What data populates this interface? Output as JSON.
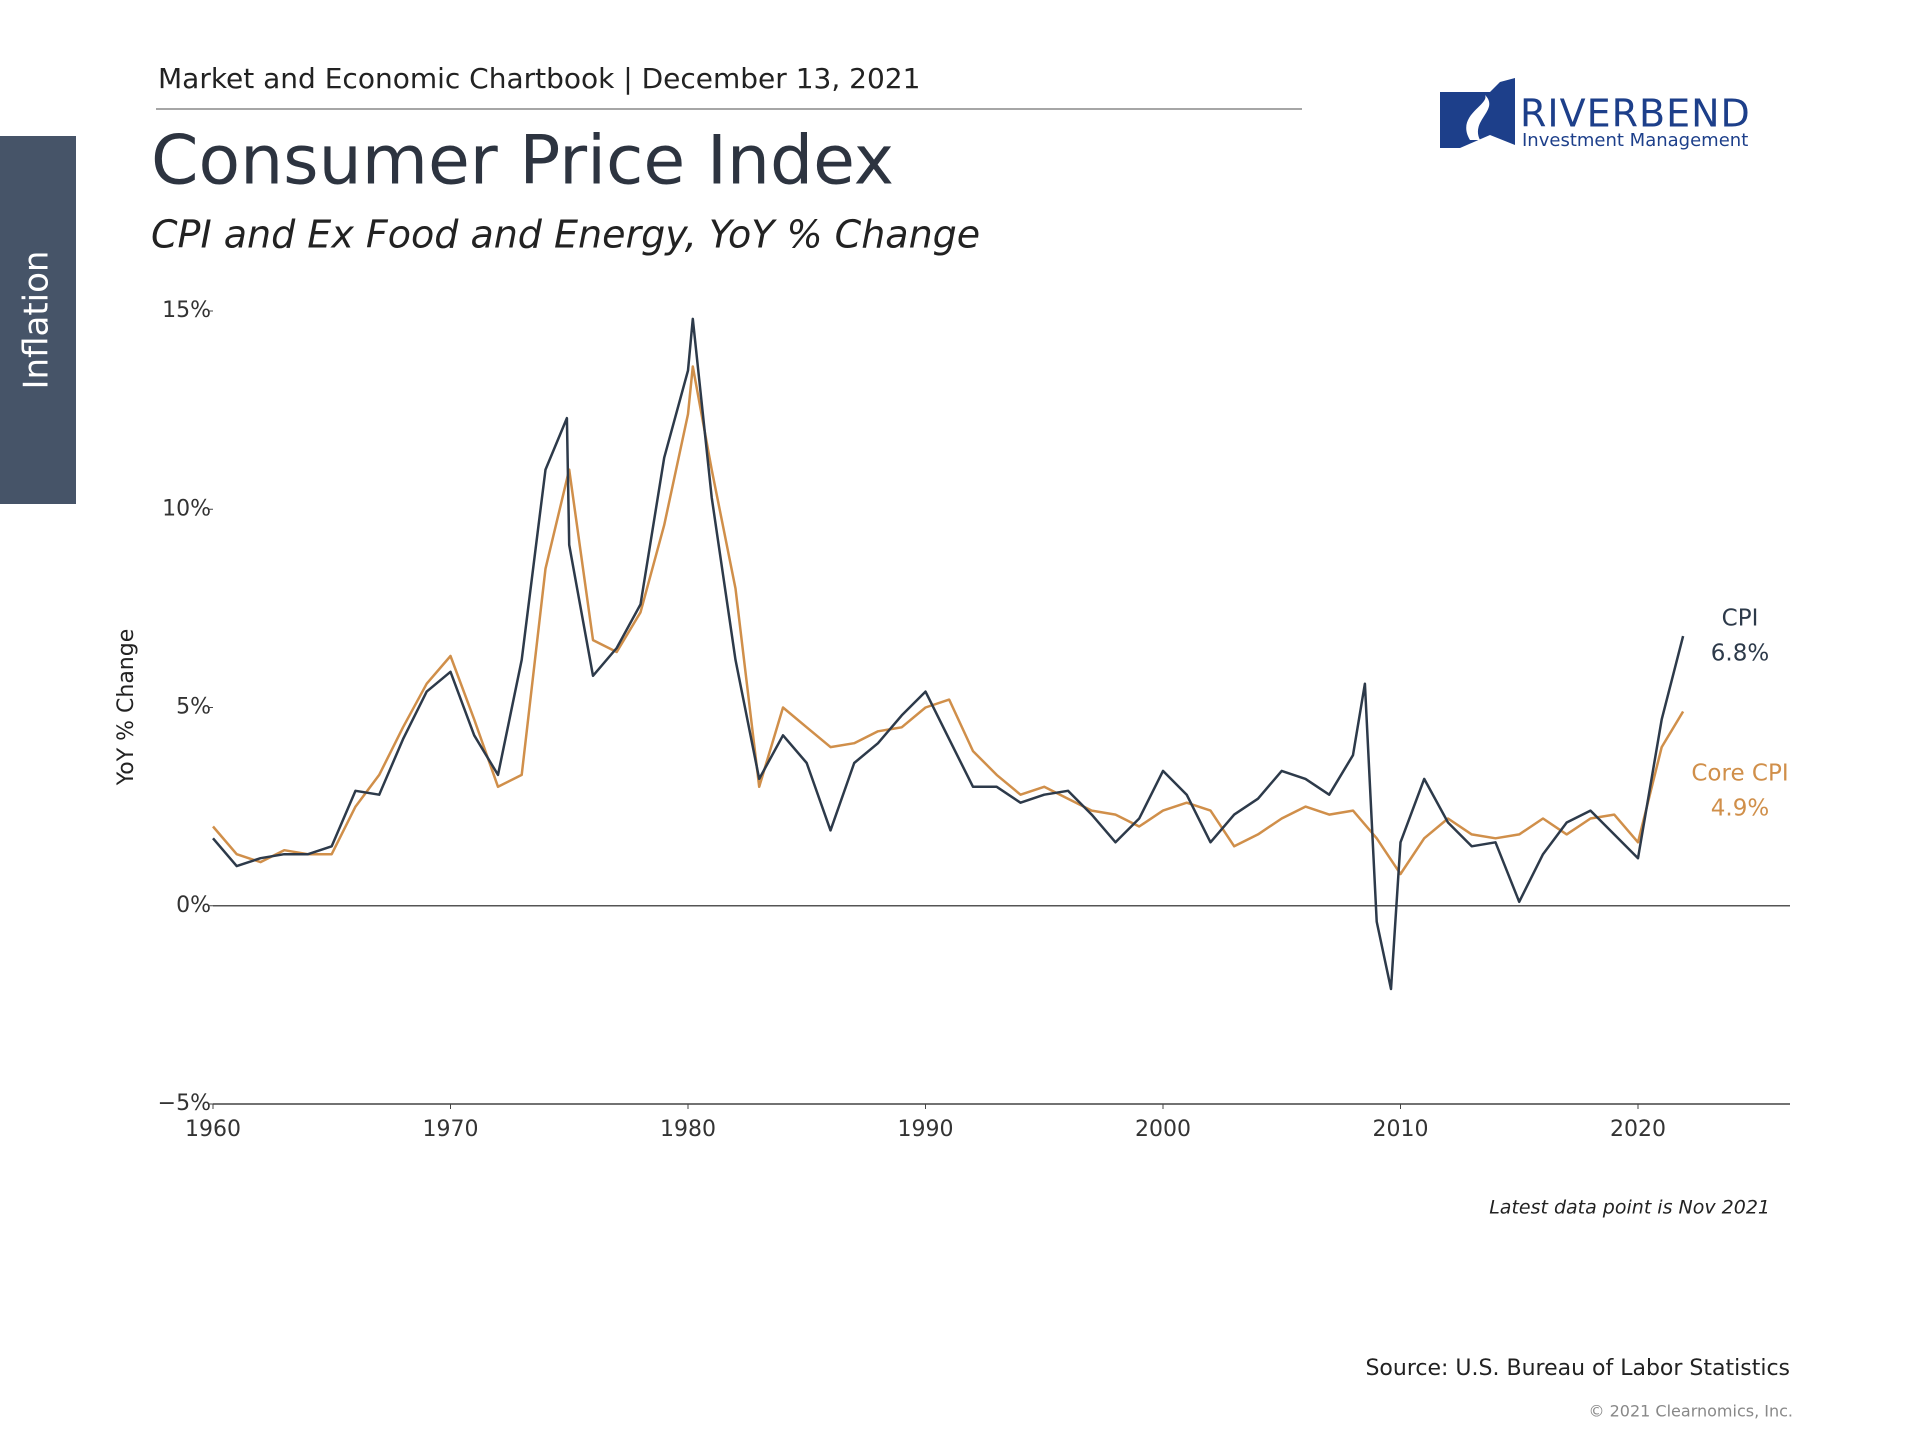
{
  "header": "Market and Economic Chartbook | December 13, 2021",
  "section_tab": "Inflation",
  "logo": {
    "name": "RIVERBEND",
    "tagline": "Investment Management"
  },
  "chart_data": {
    "type": "line",
    "title": "Consumer Price Index",
    "subtitle": "CPI and Ex Food and Energy, YoY % Change",
    "ylabel": "YoY % Change",
    "xlim": [
      1960,
      2026.4
    ],
    "xticks": [
      1960,
      1970,
      1980,
      1990,
      2000,
      2010,
      2020
    ],
    "ylim": [
      -5,
      15
    ],
    "yticks": [
      {
        "value": -5,
        "label": "−5%"
      },
      {
        "value": 0,
        "label": "0%"
      },
      {
        "value": 5,
        "label": "5%"
      },
      {
        "value": 10,
        "label": "10%"
      },
      {
        "value": 15,
        "label": "15%"
      }
    ],
    "grid": false,
    "zero_line": true,
    "series": [
      {
        "name": "CPI",
        "color": "#2d3a4a",
        "end_label": "6.8%",
        "x": [
          1960,
          1961,
          1962,
          1963,
          1964,
          1965,
          1966,
          1967,
          1968,
          1969,
          1970,
          1971,
          1972,
          1973,
          1974,
          1974.9,
          1975,
          1976,
          1977,
          1978,
          1979,
          1980,
          1980.2,
          1981,
          1982,
          1983,
          1984,
          1985,
          1986,
          1987,
          1988,
          1989,
          1990,
          1991,
          1992,
          1993,
          1994,
          1995,
          1996,
          1997,
          1998,
          1999,
          2000,
          2001,
          2002,
          2003,
          2004,
          2005,
          2006,
          2007,
          2008,
          2008.5,
          2009,
          2009.6,
          2010,
          2011,
          2012,
          2013,
          2014,
          2015,
          2016,
          2017,
          2018,
          2019,
          2020,
          2021,
          2021.9
        ],
        "values": [
          1.7,
          1.0,
          1.2,
          1.3,
          1.3,
          1.5,
          2.9,
          2.8,
          4.2,
          5.4,
          5.9,
          4.3,
          3.3,
          6.2,
          11.0,
          12.3,
          9.1,
          5.8,
          6.5,
          7.6,
          11.3,
          13.5,
          14.8,
          10.3,
          6.2,
          3.2,
          4.3,
          3.6,
          1.9,
          3.6,
          4.1,
          4.8,
          5.4,
          4.2,
          3.0,
          3.0,
          2.6,
          2.8,
          2.9,
          2.3,
          1.6,
          2.2,
          3.4,
          2.8,
          1.6,
          2.3,
          2.7,
          3.4,
          3.2,
          2.8,
          3.8,
          5.6,
          -0.4,
          -2.1,
          1.6,
          3.2,
          2.1,
          1.5,
          1.6,
          0.1,
          1.3,
          2.1,
          2.4,
          1.8,
          1.2,
          4.7,
          6.8
        ]
      },
      {
        "name": "Core CPI",
        "color": "#d08f4a",
        "end_label": "4.9%",
        "x": [
          1960,
          1961,
          1962,
          1963,
          1964,
          1965,
          1966,
          1967,
          1968,
          1969,
          1970,
          1971,
          1972,
          1973,
          1974,
          1975,
          1976,
          1977,
          1978,
          1979,
          1980,
          1980.2,
          1981,
          1982,
          1983,
          1984,
          1985,
          1986,
          1987,
          1988,
          1989,
          1990,
          1991,
          1992,
          1993,
          1994,
          1995,
          1996,
          1997,
          1998,
          1999,
          2000,
          2001,
          2002,
          2003,
          2004,
          2005,
          2006,
          2007,
          2008,
          2009,
          2010,
          2011,
          2012,
          2013,
          2014,
          2015,
          2016,
          2017,
          2018,
          2019,
          2020,
          2021,
          2021.9
        ],
        "values": [
          2.0,
          1.3,
          1.1,
          1.4,
          1.3,
          1.3,
          2.5,
          3.3,
          4.5,
          5.6,
          6.3,
          4.7,
          3.0,
          3.3,
          8.5,
          11.0,
          6.7,
          6.4,
          7.4,
          9.6,
          12.4,
          13.6,
          11.0,
          8.0,
          3.0,
          5.0,
          4.5,
          4.0,
          4.1,
          4.4,
          4.5,
          5.0,
          5.2,
          3.9,
          3.3,
          2.8,
          3.0,
          2.7,
          2.4,
          2.3,
          2.0,
          2.4,
          2.6,
          2.4,
          1.5,
          1.8,
          2.2,
          2.5,
          2.3,
          2.4,
          1.7,
          0.8,
          1.7,
          2.2,
          1.8,
          1.7,
          1.8,
          2.2,
          1.8,
          2.2,
          2.3,
          1.6,
          4.0,
          4.9
        ]
      }
    ],
    "note": "Latest data point is Nov 2021"
  },
  "source": "Source: U.S. Bureau of Labor Statistics",
  "copyright": "© 2021 Clearnomics, Inc."
}
